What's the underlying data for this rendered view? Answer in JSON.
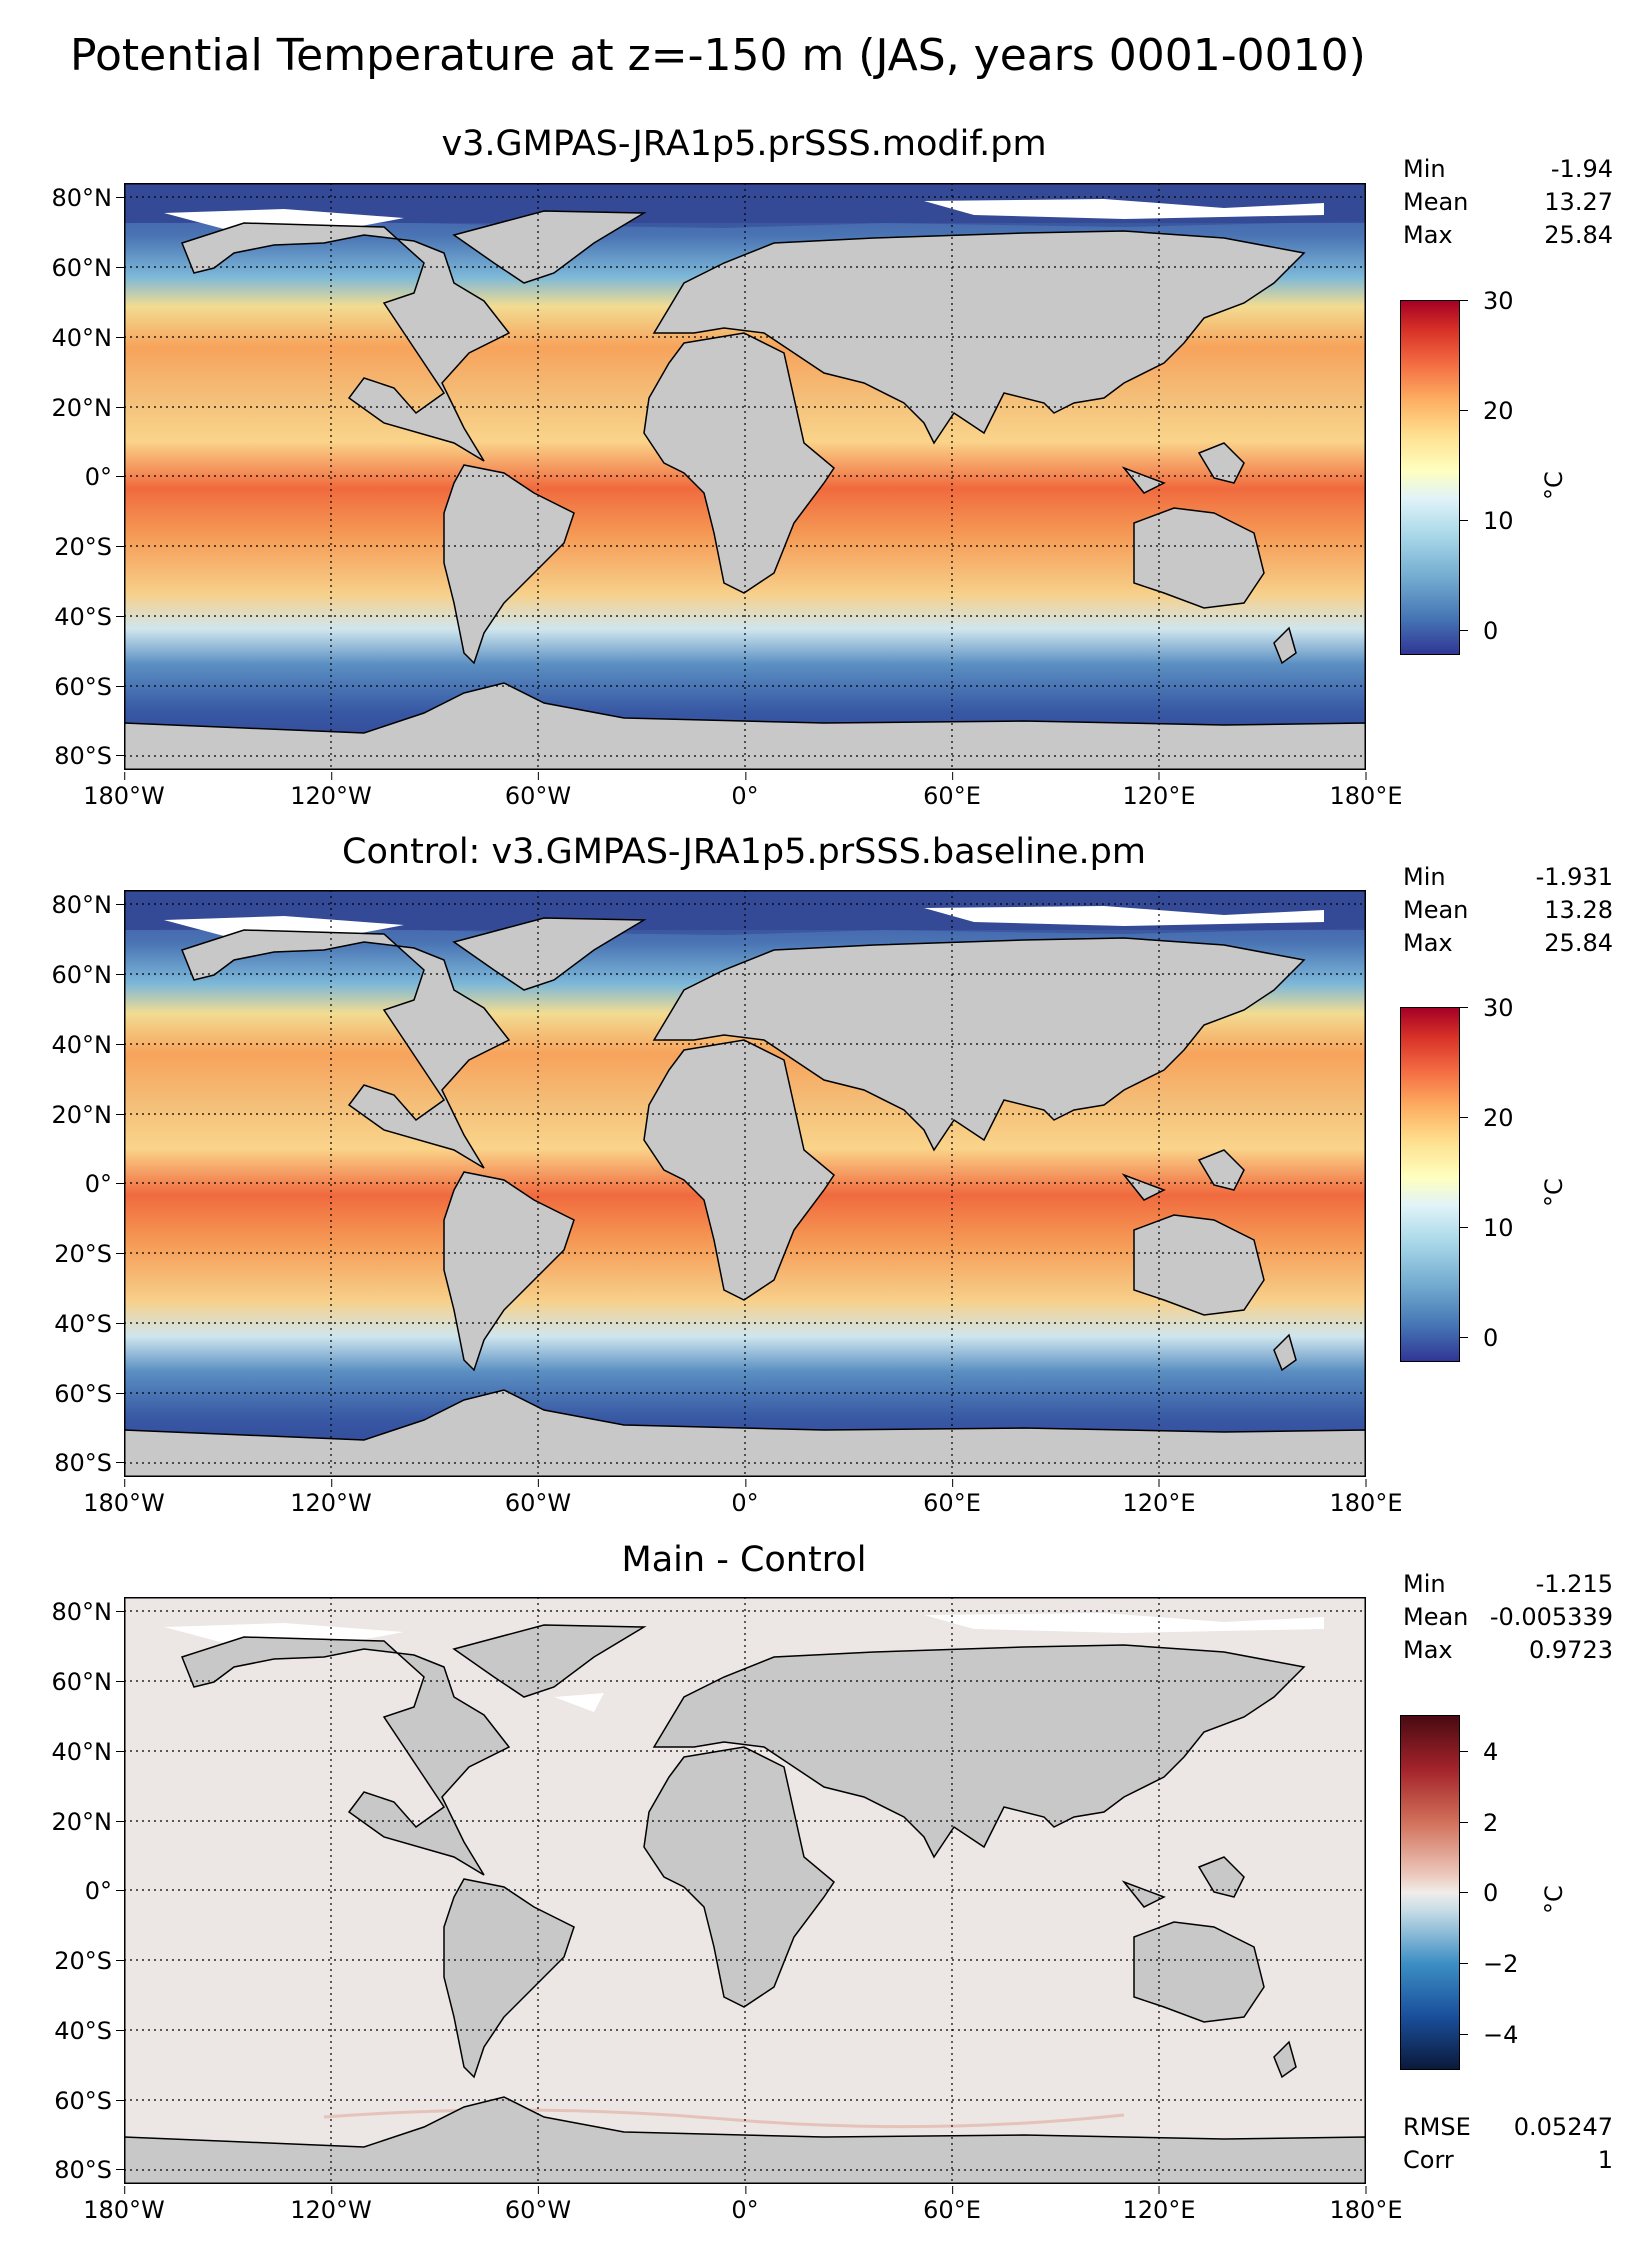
{
  "suptitle": "Potential Temperature at z=-150 m (JAS, years 0001-0010)",
  "lat_ticks": [
    "80°N",
    "60°N",
    "40°N",
    "20°N",
    "0°",
    "20°S",
    "40°S",
    "60°S",
    "80°S"
  ],
  "lon_ticks": [
    "180°W",
    "120°W",
    "60°W",
    "0°",
    "60°E",
    "120°E",
    "180°E"
  ],
  "panels": [
    {
      "title": "v3.GMPAS-JRA1p5.prSSS.modif.pm",
      "stats": {
        "min_label": "Min",
        "min": "-1.94",
        "mean_label": "Mean",
        "mean": "13.27",
        "max_label": "Max",
        "max": "25.84"
      },
      "colorbar": {
        "unit": "°C",
        "ticks": [
          "0",
          "10",
          "20",
          "30"
        ],
        "range": [
          -2,
          30
        ],
        "colormap": "RdYlBu_r"
      }
    },
    {
      "title": "Control: v3.GMPAS-JRA1p5.prSSS.baseline.pm",
      "stats": {
        "min_label": "Min",
        "min": "-1.931",
        "mean_label": "Mean",
        "mean": "13.28",
        "max_label": "Max",
        "max": "25.84"
      },
      "colorbar": {
        "unit": "°C",
        "ticks": [
          "0",
          "10",
          "20",
          "30"
        ],
        "range": [
          -2,
          30
        ],
        "colormap": "RdYlBu_r"
      }
    },
    {
      "title": "Main - Control",
      "stats": {
        "min_label": "Min",
        "min": "-1.215",
        "mean_label": "Mean",
        "mean": "-0.005339",
        "max_label": "Max",
        "max": "0.9723"
      },
      "colorbar": {
        "unit": "°C",
        "ticks": [
          "4",
          "2",
          "0",
          "−2",
          "−4"
        ],
        "range": [
          -5,
          5
        ],
        "colormap": "RdBu_r"
      },
      "metrics": {
        "rmse_label": "RMSE",
        "rmse": "0.05247",
        "corr_label": "Corr",
        "corr": "1"
      }
    }
  ],
  "colors": {
    "land": "#c8c8c8",
    "ice": "#ffffff",
    "diff_ocean": "#ece6e4"
  }
}
